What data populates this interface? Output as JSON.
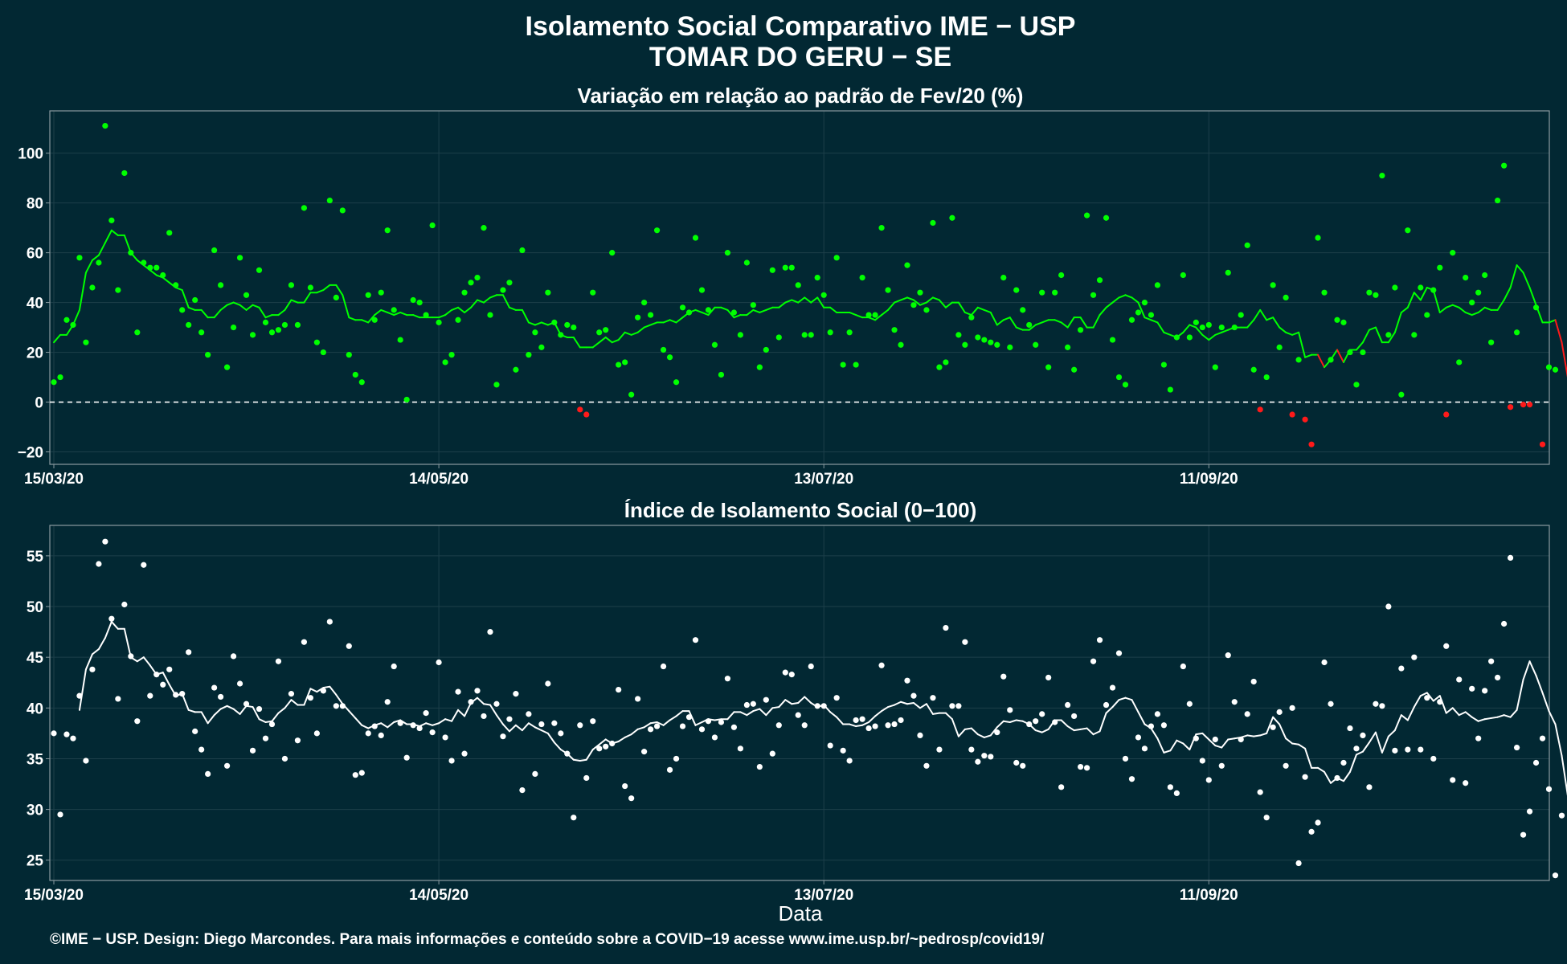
{
  "header": {
    "title": "Isolamento Social Comparativo IME − USP",
    "subtitle": "TOMAR DO GERU − SE"
  },
  "footer": {
    "text": "©IME − USP. Design: Diego Marcondes. Para mais informações e conteúdo sobre a COVID−19 acesse www.ime.usp.br/~pedrosp/covid19/"
  },
  "colors": {
    "background": "#022833",
    "positive": "#00ff00",
    "negative": "#ff1a1a",
    "index": "#ffffff",
    "grid": "#1d3f4a",
    "frame": "#8a9aa0"
  },
  "chart_data": [
    {
      "type": "scatter",
      "title": "Variação em relação ao padrão de Fev/20 (%)",
      "xlabel": "",
      "ylabel": "",
      "x_start": "15/03/20",
      "x_ticks": [
        "15/03/20",
        "14/05/20",
        "13/07/20",
        "11/09/20"
      ],
      "x_tick_day_index": [
        0,
        60,
        120,
        180
      ],
      "ylim": [
        -25,
        117
      ],
      "y_ticks": [
        -20,
        0,
        20,
        40,
        60,
        80,
        100
      ],
      "reference_line": 0,
      "grid": true,
      "legend": "none",
      "series": [
        {
          "kind": "points",
          "values": [
            8,
            10,
            33,
            31,
            58,
            24,
            46,
            56,
            111,
            73,
            45,
            92,
            60,
            28,
            56,
            54,
            54,
            51,
            68,
            47,
            37,
            31,
            41,
            28,
            19,
            61,
            47,
            14,
            30,
            58,
            43,
            27,
            53,
            32,
            28,
            29,
            31,
            47,
            31,
            78,
            46,
            24,
            20,
            81,
            42,
            77,
            19,
            11,
            8,
            43,
            33,
            44,
            69,
            37,
            25,
            1,
            41,
            40,
            35,
            71,
            32,
            16,
            19,
            33,
            44,
            48,
            50,
            70,
            35,
            7,
            45,
            48,
            13,
            61,
            19,
            28,
            22,
            44,
            32,
            27,
            31,
            30,
            -3,
            -5,
            44,
            28,
            29,
            60,
            15,
            16,
            3,
            34,
            40,
            35,
            69,
            21,
            18,
            8,
            38,
            36,
            66,
            45,
            37,
            23,
            11,
            60,
            36,
            27,
            56,
            39,
            14,
            21,
            53,
            26,
            54,
            54,
            47,
            27,
            27,
            50,
            43,
            28,
            58,
            15,
            28,
            15,
            50,
            35,
            35,
            70,
            45,
            29,
            23,
            55,
            39,
            44,
            37,
            72,
            14,
            16,
            74,
            27,
            23,
            34,
            26,
            25,
            24,
            23,
            50,
            22,
            45,
            37,
            31,
            23,
            44,
            14,
            44,
            51,
            22,
            13,
            29,
            75,
            43,
            49,
            74,
            25,
            10,
            7,
            33,
            36,
            40,
            35,
            47,
            15,
            5,
            26,
            51,
            26,
            32,
            30,
            31,
            14,
            30,
            52,
            30,
            35,
            63,
            13,
            -3,
            10,
            47,
            22,
            42,
            -5,
            17,
            -7,
            -17,
            66,
            44,
            17,
            33,
            32,
            20,
            7,
            20,
            44,
            43,
            91,
            27,
            46,
            3,
            69,
            27,
            46,
            35,
            45,
            54,
            -5,
            60,
            16,
            50,
            40,
            44,
            51,
            24,
            81,
            95,
            -2,
            28,
            -1,
            -1,
            38,
            -17,
            14,
            13
          ],
          "negative_color_when_below": 0
        },
        {
          "kind": "line",
          "description_of_values": "media movel 7 dias",
          "values": [
            24,
            27,
            27,
            31,
            37,
            52,
            57,
            59,
            64,
            69,
            67,
            67,
            60,
            57,
            55,
            53,
            51,
            50,
            48,
            46,
            45,
            38,
            37,
            37,
            34,
            34,
            37,
            39,
            40,
            39,
            37,
            39,
            38,
            34,
            35,
            35,
            37,
            41,
            40,
            40,
            44,
            44,
            45,
            47,
            47,
            43,
            34,
            33,
            33,
            32,
            35,
            37,
            36,
            35,
            36,
            35,
            35,
            34,
            34,
            34,
            34,
            35,
            37,
            38,
            36,
            38,
            41,
            40,
            42,
            43,
            43,
            38,
            37,
            37,
            32,
            31,
            32,
            31,
            32,
            27,
            26,
            26,
            22,
            22,
            22,
            24,
            26,
            24,
            25,
            28,
            27,
            28,
            30,
            31,
            32,
            32,
            33,
            32,
            34,
            36,
            37,
            36,
            35,
            38,
            38,
            37,
            34,
            35,
            35,
            37,
            36,
            37,
            38,
            38,
            40,
            41,
            40,
            42,
            40,
            42,
            38,
            38,
            36,
            36,
            36,
            35,
            34,
            34,
            33,
            35,
            37,
            40,
            41,
            42,
            41,
            39,
            40,
            42,
            41,
            38,
            40,
            40,
            36,
            35,
            38,
            37,
            36,
            31,
            33,
            34,
            30,
            29,
            29,
            31,
            32,
            33,
            33,
            32,
            30,
            34,
            34,
            30,
            30,
            35,
            38,
            40,
            42,
            43,
            42,
            40,
            34,
            33,
            32,
            28,
            27,
            26,
            28,
            31,
            30,
            27,
            25,
            27,
            28,
            29,
            30,
            30,
            30,
            33,
            37,
            33,
            34,
            30,
            28,
            27,
            28,
            18,
            19,
            19,
            14,
            17,
            21,
            16,
            21,
            21,
            24,
            29,
            30,
            24,
            24,
            28,
            36,
            38,
            44,
            41,
            46,
            45,
            36,
            38,
            39,
            38,
            36,
            35,
            36,
            38,
            37,
            37,
            41,
            46,
            55,
            52,
            46,
            39,
            32,
            32,
            33,
            24,
            9,
            7,
            null,
            null
          ],
          "negative_color_when_below": null
        }
      ]
    },
    {
      "type": "scatter",
      "title": "Índice de Isolamento Social (0−100)",
      "xlabel": "Data",
      "ylabel": "",
      "x_start": "15/03/20",
      "x_ticks": [
        "15/03/20",
        "14/05/20",
        "13/07/20",
        "11/09/20"
      ],
      "x_tick_day_index": [
        0,
        60,
        120,
        180
      ],
      "ylim": [
        23,
        58
      ],
      "y_ticks": [
        25,
        30,
        35,
        40,
        45,
        50,
        55
      ],
      "grid": true,
      "legend": "none",
      "series": [
        {
          "kind": "points",
          "values": [
            37.5,
            29.5,
            37.4,
            37,
            41.2,
            34.8,
            43.8,
            54.2,
            56.4,
            48.8,
            40.9,
            50.2,
            45.1,
            38.7,
            54.1,
            41.2,
            43.3,
            42.3,
            43.8,
            41.3,
            41.4,
            45.5,
            37.7,
            35.9,
            33.5,
            42,
            41.1,
            34.3,
            45.1,
            42.4,
            40.4,
            35.8,
            39.9,
            37,
            38.4,
            44.6,
            35,
            41.4,
            36.8,
            46.5,
            41,
            37.5,
            41.7,
            48.5,
            40.2,
            40.2,
            46.1,
            33.4,
            33.6,
            37.5,
            38.2,
            37.3,
            40.6,
            44.1,
            38.5,
            35.1,
            38.3,
            38,
            39.5,
            37.6,
            44.5,
            37.1,
            34.8,
            41.6,
            35.5,
            40.6,
            41.7,
            39.2,
            47.5,
            40.4,
            37.2,
            38.9,
            41.4,
            31.9,
            39.4,
            33.5,
            38.4,
            42.4,
            38.5,
            37.5,
            35.5,
            29.2,
            38.3,
            33.1,
            38.7,
            36,
            36.2,
            36.5,
            41.8,
            32.3,
            31.1,
            40.9,
            35.7,
            37.9,
            38.2,
            44.1,
            33.9,
            35,
            38.2,
            39.1,
            46.7,
            37.9,
            38.7,
            37.1,
            38.6,
            42.9,
            38.1,
            36,
            40.3,
            40.4,
            34.2,
            40.8,
            35.5,
            38.3,
            43.5,
            43.3,
            39.3,
            38.3,
            44.1,
            40.2,
            40.2,
            36.3,
            41,
            35.8,
            34.8,
            38.8,
            38.9,
            38,
            38.2,
            44.2,
            38.3,
            38.4,
            38.8,
            42.7,
            41.2,
            37.3,
            34.3,
            41,
            35.9,
            47.9,
            40.2,
            40.2,
            46.5,
            35.9,
            34.7,
            35.3,
            35.2,
            37.6,
            43.1,
            39.8,
            34.6,
            34.3,
            38.4,
            38.7,
            39.4,
            43,
            38.6,
            32.2,
            40.3,
            39.2,
            34.2,
            34.1,
            44.6,
            46.7,
            40.3,
            42,
            45.4,
            35,
            33,
            37.1,
            36,
            38.2,
            39.4,
            38.3,
            32.2,
            31.6,
            44.1,
            40.4,
            37,
            34.8,
            32.9,
            36.9,
            34.3,
            45.2,
            40.6,
            36.9,
            39.4,
            42.6,
            31.7,
            29.2,
            38.1,
            39.6,
            34.3,
            40,
            24.7,
            33.2,
            27.8,
            28.7,
            44.5,
            40.4,
            33.1,
            34.6,
            38,
            36,
            37.3,
            32.2,
            40.4,
            40.2,
            50,
            35.8,
            43.9,
            35.9,
            45,
            35.9,
            41,
            35,
            40.6,
            46.1,
            32.9,
            42.8,
            32.6,
            41.9,
            37,
            41.7,
            44.6,
            43,
            48.3,
            54.8,
            36.1,
            27.5,
            29.8,
            34.6,
            37,
            32,
            23.5,
            29.4
          ]
        },
        {
          "kind": "line",
          "description_of_values": "media movel 7 dias",
          "values": [
            null,
            null,
            null,
            null,
            39.8,
            43.8,
            45.3,
            45.8,
            46.9,
            48.5,
            47.8,
            47.8,
            45,
            44.6,
            45,
            44.2,
            43.3,
            43.5,
            42.3,
            41.2,
            41.4,
            39.8,
            39.6,
            39.6,
            38.5,
            39.3,
            39.9,
            40.2,
            39.9,
            39.4,
            40.2,
            40.1,
            38.9,
            38.6,
            38.7,
            39.5,
            40,
            40.8,
            40.3,
            40.3,
            41.9,
            41.6,
            42,
            42.1,
            41.3,
            40.4,
            39.7,
            39,
            38.3,
            38,
            38.3,
            38.5,
            38.1,
            38.6,
            38.8,
            38.4,
            38.4,
            38.2,
            38.5,
            38.3,
            38.5,
            38.9,
            38.7,
            39.8,
            39.2,
            40.5,
            41,
            40.4,
            40.3,
            39.3,
            38.4,
            37.7,
            38.3,
            37.8,
            38.5,
            38.1,
            37.8,
            37.5,
            36.6,
            35.9,
            35.5,
            34.9,
            34.8,
            34.9,
            35.9,
            36.4,
            36.9,
            36.5,
            36.7,
            37.1,
            37.4,
            37.9,
            38.1,
            38.5,
            38.6,
            38.3,
            38.8,
            39.2,
            39.7,
            39.7,
            38.3,
            38.6,
            38.9,
            38.8,
            38.9,
            38.9,
            39.6,
            39.6,
            39.3,
            39.7,
            39.9,
            39.3,
            40,
            40.1,
            40.8,
            40.4,
            40.5,
            41.1,
            40.5,
            40.1,
            40.3,
            39.6,
            39.1,
            38.4,
            38.4,
            38.2,
            38.3,
            38.6,
            39.2,
            39.7,
            40.1,
            40.3,
            40.6,
            40.4,
            40.5,
            40,
            40.4,
            39.4,
            39.5,
            39.5,
            38.9,
            37.2,
            37.9,
            38,
            37.4,
            37.1,
            37.3,
            38.1,
            38.7,
            38.6,
            38.8,
            38.7,
            38.4,
            37.8,
            37.6,
            37.9,
            38.8,
            38.8,
            38.2,
            37.8,
            37.9,
            38,
            37.4,
            37.7,
            39.5,
            40.1,
            40.8,
            41,
            40.8,
            39.6,
            38.4,
            38,
            37,
            35.6,
            35.8,
            36.8,
            36.5,
            35.9,
            37.4,
            37.5,
            36.9,
            36.3,
            36.1,
            36.9,
            37,
            37.1,
            37.3,
            37.2,
            37.3,
            37.5,
            39.1,
            38.4,
            37,
            36.5,
            36.4,
            36,
            34.1,
            34.1,
            33.7,
            32.6,
            33.1,
            32.8,
            33.7,
            35.4,
            35.7,
            36.6,
            37.6,
            35.6,
            37.2,
            37.8,
            39.3,
            38.8,
            40.1,
            41.2,
            41.5,
            40.7,
            41.2,
            39.5,
            40,
            39.3,
            39.6,
            39.1,
            38.7,
            38.9,
            39,
            39.1,
            39.3,
            39.1,
            39.8,
            42.8,
            44.6,
            43.2,
            41.5,
            39.7,
            38.4,
            35.3,
            31.1,
            30.5,
            27.8,
            24.9,
            24.7,
            null
          ]
        }
      ]
    }
  ]
}
